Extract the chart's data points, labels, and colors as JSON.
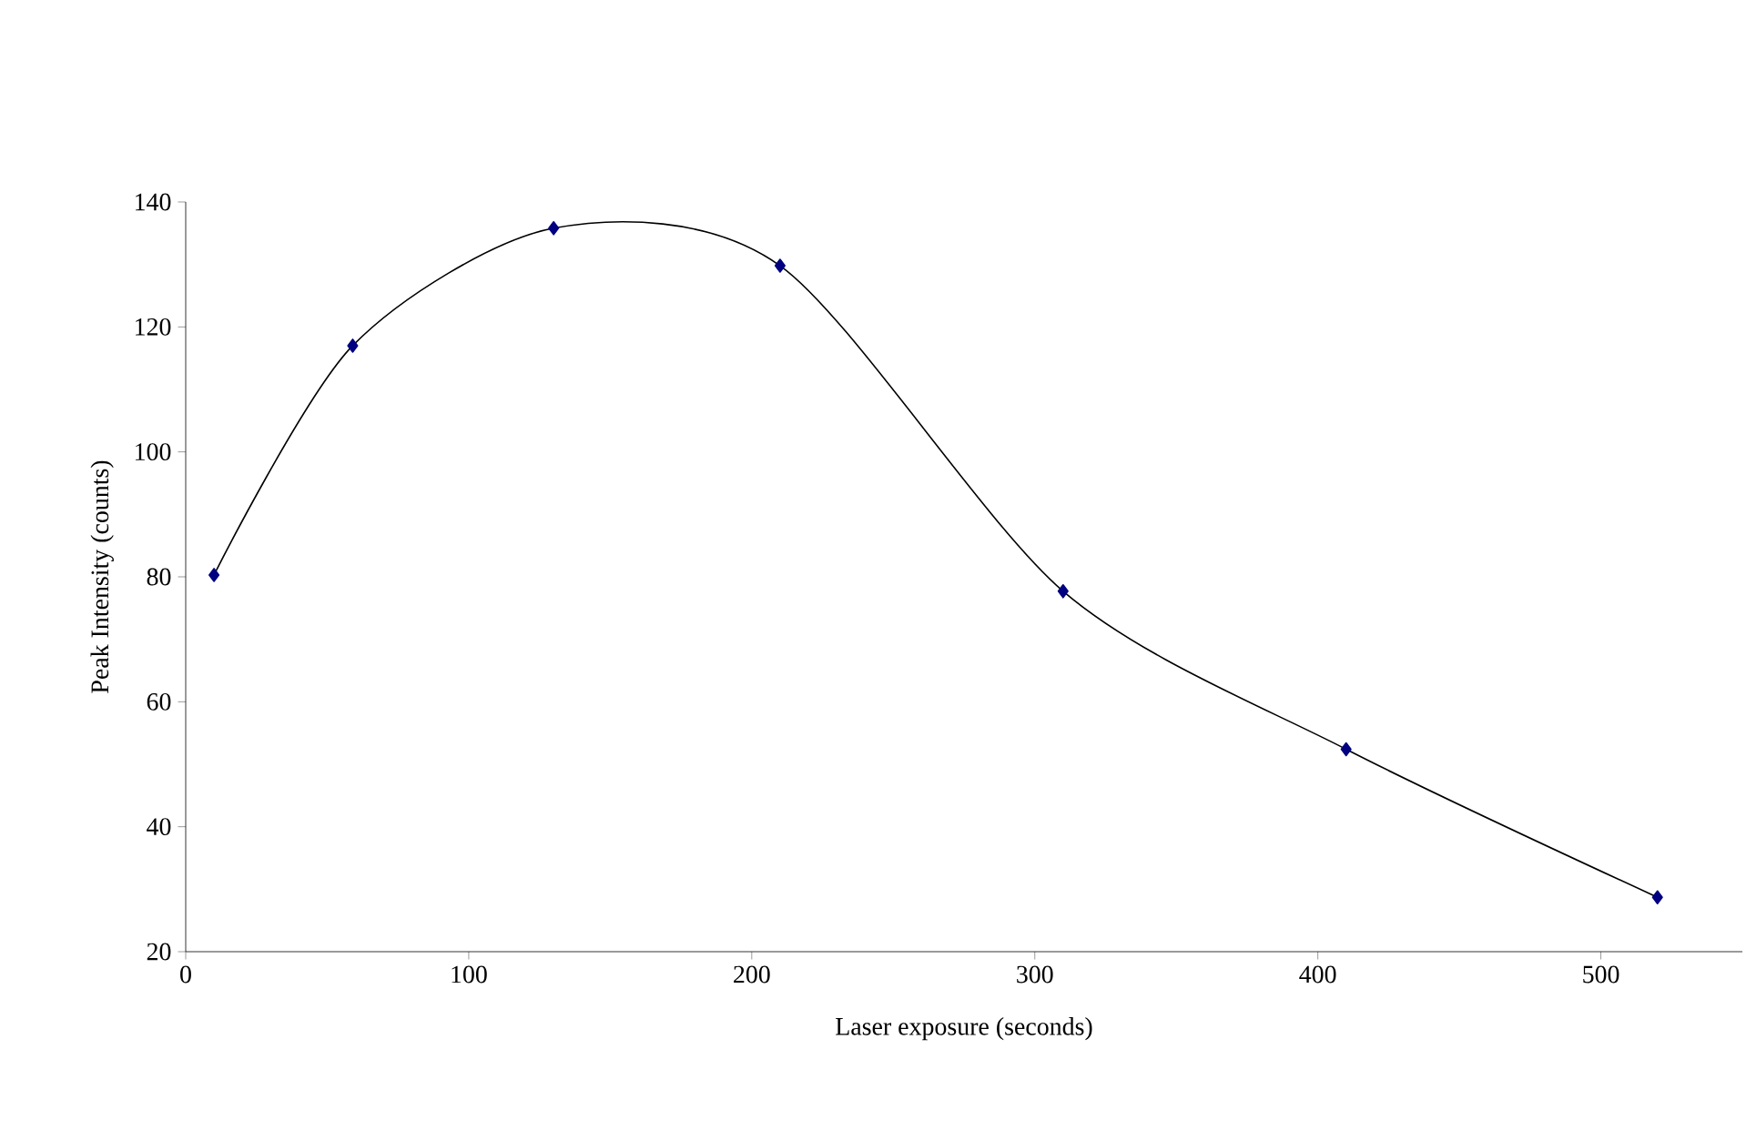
{
  "chart_data": {
    "type": "line",
    "xlabel": "Laser exposure (seconds)",
    "ylabel": "Peak Intensity (counts)",
    "x": [
      10,
      59,
      130,
      210,
      310,
      410,
      520
    ],
    "series": [
      {
        "color": "#000080",
        "values": [
          80.3,
          117,
          135.8,
          129.8,
          77.7,
          52.4,
          28.7
        ]
      }
    ],
    "xlim": [
      0,
      550
    ],
    "xticks": [
      0,
      100,
      200,
      300,
      400,
      500
    ],
    "ylim": [
      20,
      140
    ],
    "yticks": [
      20,
      40,
      60,
      80,
      100,
      120,
      140
    ],
    "grid": false,
    "marker": "diamond",
    "line_style": "solid"
  }
}
